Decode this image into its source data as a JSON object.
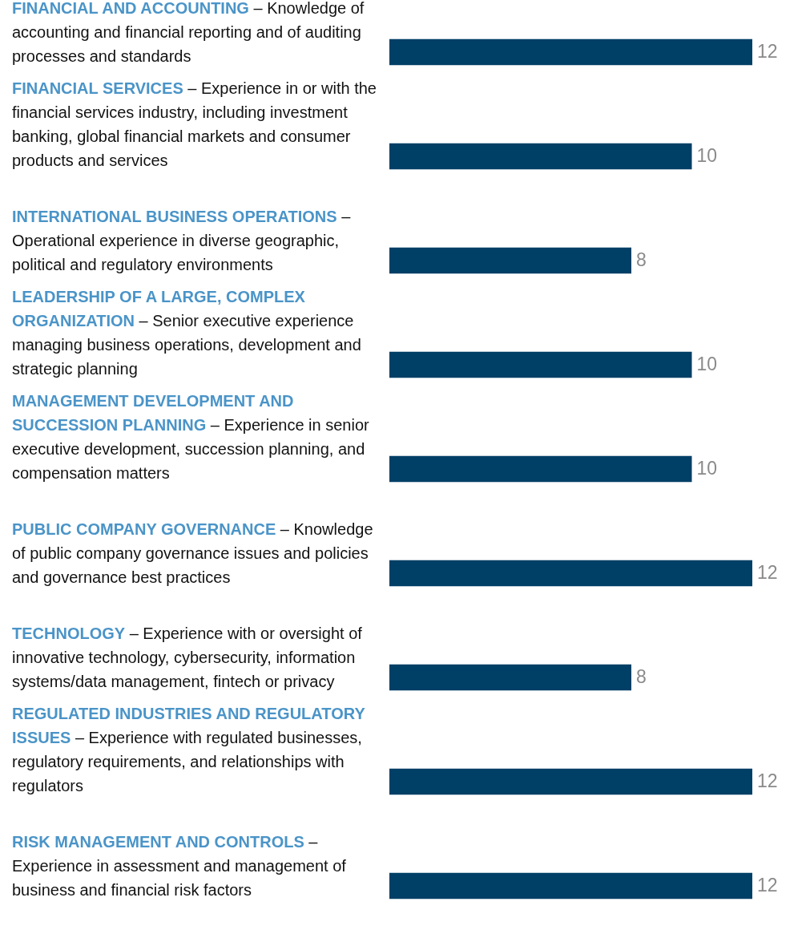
{
  "chart_data": {
    "type": "bar",
    "orientation": "horizontal",
    "data_labels": true,
    "categories": [
      "FINANCIAL AND ACCOUNTING – Knowledge of accounting and financial reporting and of auditing processes and standards",
      "FINANCIAL SERVICES – Experience in or with the financial services industry, including investment banking, global financial markets and consumer products and services",
      "INTERNATIONAL BUSINESS OPERATIONS – Operational experience in diverse geographic, political and regulatory environments",
      "LEADERSHIP OF A LARGE, COMPLEX ORGANIZATION – Senior executive experience managing business operations, development and strategic planning",
      "MANAGEMENT DEVELOPMENT AND SUCCESSION PLANNING – Experience in senior executive development, succession planning, and compensation matters",
      "PUBLIC COMPANY GOVERNANCE – Knowledge of public company governance issues and policies and governance best practices",
      "TECHNOLOGY – Experience with or oversight of innovative technology, cybersecurity, information systems/data management, fintech or privacy",
      "REGULATED INDUSTRIES AND REGULATORY ISSUES – Experience with regulated businesses, regulatory requirements, and relationships with regulators",
      "RISK MANAGEMENT AND CONTROLS – Experience in assessment and management of business and financial risk factors"
    ],
    "values": [
      12,
      10,
      8,
      10,
      10,
      12,
      8,
      12,
      12
    ],
    "color": "#003f66"
  }
}
